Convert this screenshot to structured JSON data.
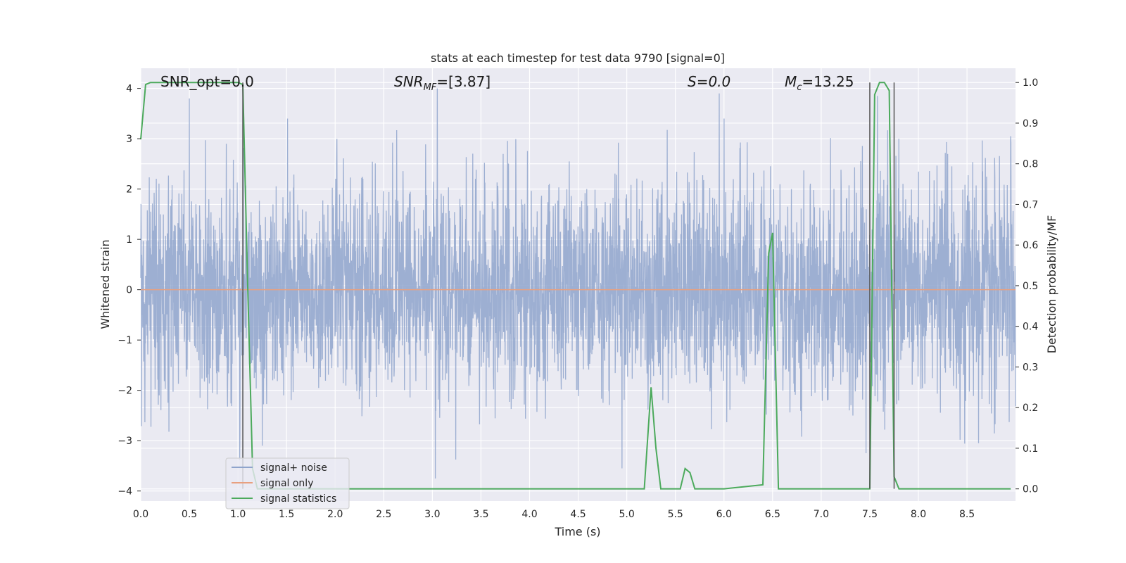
{
  "chart_data": {
    "type": "line",
    "title": "stats at each timestep for test data 9790 [signal=0]",
    "xlabel": "Time (s)",
    "ylabel": "Whitened strain",
    "y2label": "Detection probability/MF",
    "xlim": [
      0,
      8.999
    ],
    "ylim": [
      -4.2,
      4.4
    ],
    "y2lim": [
      -0.03,
      1.035
    ],
    "xticks": [
      "0.0",
      "0.5",
      "1.0",
      "1.5",
      "2.0",
      "2.5",
      "3.0",
      "3.5",
      "4.0",
      "4.5",
      "5.0",
      "5.5",
      "6.0",
      "6.5",
      "7.0",
      "7.5",
      "8.0",
      "8.5"
    ],
    "yticks": [
      "4",
      "3",
      "2",
      "1",
      "0",
      "−1",
      "−2",
      "−3",
      "−4"
    ],
    "y2ticks": [
      "1.0",
      "0.9",
      "0.8",
      "0.7",
      "0.6",
      "0.5",
      "0.4",
      "0.3",
      "0.2",
      "0.1",
      "0.0"
    ],
    "grid": true,
    "legend_position": "lower-left",
    "annotations": {
      "snr_opt": "SNR_opt=0.0",
      "snr_mf_main": "SNR",
      "snr_mf_sub": "MF",
      "snr_mf_value": "=[3.87]",
      "s": "S=0.0",
      "mc_main": "M",
      "mc_sub": "c",
      "mc_value": "=13.25"
    },
    "series": [
      {
        "name": "signal+ noise",
        "color": "#8fa4cc",
        "note": "whitened noise, approx. gaussian, peaks near +/-3.5",
        "spikes": [
          [
            0.5,
            3.8
          ],
          [
            1.02,
            -2.9
          ],
          [
            1.25,
            -3.1
          ],
          [
            3.05,
            4.0
          ],
          [
            3.03,
            -3.75
          ],
          [
            4.95,
            -3.55
          ],
          [
            5.95,
            3.9
          ],
          [
            7.46,
            -3.25
          ],
          [
            7.58,
            3.85
          ],
          [
            7.8,
            3.0
          ],
          [
            8.95,
            3.05
          ],
          [
            8.62,
            -3.05
          ]
        ]
      },
      {
        "name": "signal only",
        "color": "#e8a07f",
        "values": "flat at 0"
      },
      {
        "name": "signal statistics",
        "color": "#4caa5c",
        "axis": "right",
        "x": [
          0.0,
          0.05,
          0.1,
          0.15,
          0.2,
          0.5,
          0.8,
          1.0,
          1.05,
          1.1,
          1.15,
          1.2,
          1.25,
          5.18,
          5.25,
          5.3,
          5.35,
          5.55,
          5.6,
          5.65,
          5.7,
          6.0,
          6.4,
          6.46,
          6.5,
          6.56,
          6.6,
          6.65,
          7.45,
          7.5,
          7.55,
          7.6,
          7.65,
          7.7,
          7.75,
          7.8,
          7.85,
          8.95
        ],
        "values": [
          0.86,
          0.995,
          1.0,
          1.0,
          1.0,
          1.0,
          1.0,
          1.0,
          0.995,
          0.5,
          0.05,
          0.0,
          0.0,
          0.0,
          0.25,
          0.1,
          0.0,
          0.0,
          0.05,
          0.04,
          0.0,
          0.0,
          0.01,
          0.58,
          0.63,
          0.0,
          0.0,
          0.0,
          0.0,
          0.0,
          0.97,
          1.0,
          1.0,
          0.98,
          0.03,
          0.0,
          0.0,
          0.0
        ]
      }
    ],
    "vertical_markers": [
      1.05,
      7.5,
      7.75
    ],
    "horizontal_reference_lines_right_axis": [
      0.4,
      0.6
    ],
    "colors": {
      "background": "#ffffff",
      "plot_background": "#eaeaf2",
      "grid": "#ffffff",
      "noise": "#8fa4cc",
      "signal": "#e8a07f",
      "stats": "#4caa5c",
      "marker": "#555555"
    }
  }
}
